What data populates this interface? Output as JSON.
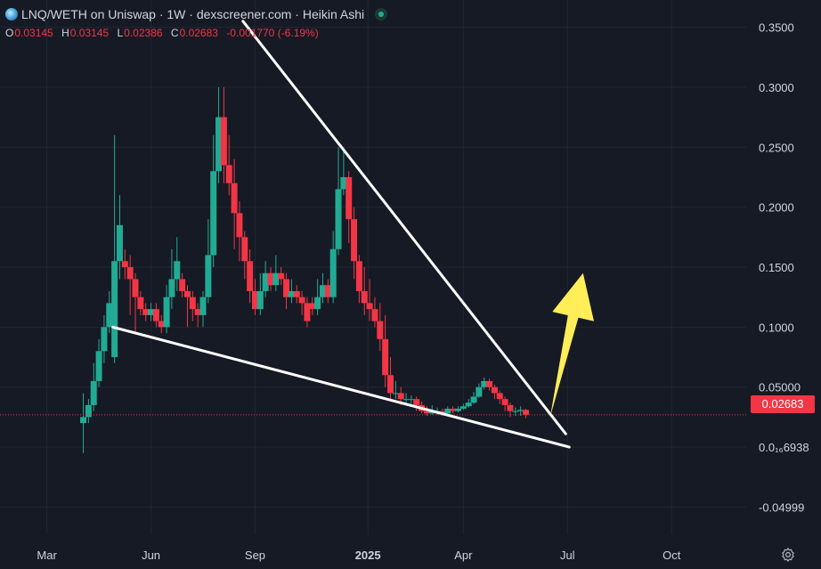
{
  "header": {
    "title": "LNQ/WETH on Uniswap · 1W · dexscreener.com · Heikin Ashi",
    "status_icon": "live-dot-icon"
  },
  "ohlc": {
    "o_label": "O",
    "o": "0.03145",
    "h_label": "H",
    "h": "0.03145",
    "l_label": "L",
    "l": "0.02386",
    "c_label": "C",
    "c": "0.02683",
    "change": "-0.001770 (-6.19%)"
  },
  "current_price_label": "0.02683",
  "colors": {
    "background": "#161a25",
    "up": "#22ab94",
    "down": "#f23645",
    "trendline": "#ffffff",
    "arrow": "#ffee58",
    "grid": "#232632"
  },
  "chart_data": {
    "type": "candlestick",
    "style": "Heikin Ashi",
    "interval": "1W",
    "y_tick_labels": [
      "0.3500",
      "0.3000",
      "0.2500",
      "0.2000",
      "0.1500",
      "0.1000",
      "0.05000",
      "0.0₁₆6938",
      "-0.04999"
    ],
    "y_tick_values": [
      0.35,
      0.3,
      0.25,
      0.2,
      0.15,
      0.1,
      0.05,
      0.0,
      -0.04999
    ],
    "x_tick_labels": [
      "Mar",
      "Jun",
      "Sep",
      "2025",
      "Apr",
      "Jul",
      "Oct"
    ],
    "x_tick_positions": [
      1.75,
      4.75,
      7.75,
      11.0,
      13.75,
      16.75,
      19.75
    ],
    "x_unit": "months since 2024-01-01",
    "ylim": [
      -0.0727,
      0.3727
    ],
    "xlim": [
      0.4,
      21.9
    ],
    "grid": true,
    "current_price": 0.02683,
    "candles": [
      [
        2.8,
        0.02,
        0.025,
        0.045,
        -0.005
      ],
      [
        2.95,
        0.025,
        0.035,
        0.04,
        0.02
      ],
      [
        3.1,
        0.035,
        0.055,
        0.07,
        0.03
      ],
      [
        3.25,
        0.055,
        0.08,
        0.09,
        0.05
      ],
      [
        3.4,
        0.08,
        0.1,
        0.11,
        0.07
      ],
      [
        3.55,
        0.1,
        0.12,
        0.13,
        0.095
      ],
      [
        3.7,
        0.075,
        0.155,
        0.26,
        0.07
      ],
      [
        3.85,
        0.155,
        0.185,
        0.21,
        0.14
      ],
      [
        4.0,
        0.155,
        0.15,
        0.165,
        0.14
      ],
      [
        4.15,
        0.15,
        0.14,
        0.16,
        0.11
      ],
      [
        4.3,
        0.14,
        0.125,
        0.145,
        0.095
      ],
      [
        4.45,
        0.125,
        0.115,
        0.13,
        0.11
      ],
      [
        4.6,
        0.115,
        0.11,
        0.12,
        0.105
      ],
      [
        4.75,
        0.11,
        0.115,
        0.12,
        0.105
      ],
      [
        4.9,
        0.115,
        0.105,
        0.12,
        0.1
      ],
      [
        5.05,
        0.105,
        0.1,
        0.11,
        0.095
      ],
      [
        5.2,
        0.1,
        0.125,
        0.135,
        0.095
      ],
      [
        5.35,
        0.125,
        0.14,
        0.165,
        0.115
      ],
      [
        5.5,
        0.14,
        0.155,
        0.175,
        0.13
      ],
      [
        5.65,
        0.14,
        0.13,
        0.145,
        0.125
      ],
      [
        5.8,
        0.13,
        0.125,
        0.135,
        0.1
      ],
      [
        5.95,
        0.125,
        0.115,
        0.13,
        0.105
      ],
      [
        6.1,
        0.115,
        0.11,
        0.12,
        0.1
      ],
      [
        6.25,
        0.11,
        0.125,
        0.13,
        0.1
      ],
      [
        6.4,
        0.125,
        0.16,
        0.19,
        0.12
      ],
      [
        6.55,
        0.16,
        0.23,
        0.26,
        0.15
      ],
      [
        6.7,
        0.23,
        0.275,
        0.3,
        0.22
      ],
      [
        6.85,
        0.275,
        0.235,
        0.3,
        0.22
      ],
      [
        7.0,
        0.235,
        0.22,
        0.26,
        0.21
      ],
      [
        7.15,
        0.22,
        0.195,
        0.24,
        0.165
      ],
      [
        7.3,
        0.195,
        0.175,
        0.205,
        0.155
      ],
      [
        7.45,
        0.175,
        0.155,
        0.18,
        0.14
      ],
      [
        7.6,
        0.155,
        0.13,
        0.165,
        0.12
      ],
      [
        7.75,
        0.13,
        0.115,
        0.14,
        0.11
      ],
      [
        7.9,
        0.115,
        0.13,
        0.145,
        0.11
      ],
      [
        8.05,
        0.13,
        0.145,
        0.155,
        0.125
      ],
      [
        8.2,
        0.145,
        0.135,
        0.15,
        0.13
      ],
      [
        8.35,
        0.135,
        0.145,
        0.16,
        0.13
      ],
      [
        8.5,
        0.145,
        0.14,
        0.15,
        0.135
      ],
      [
        8.65,
        0.14,
        0.125,
        0.145,
        0.115
      ],
      [
        8.8,
        0.125,
        0.13,
        0.14,
        0.12
      ],
      [
        8.95,
        0.13,
        0.125,
        0.135,
        0.12
      ],
      [
        9.1,
        0.125,
        0.12,
        0.13,
        0.11
      ],
      [
        9.25,
        0.12,
        0.105,
        0.125,
        0.1
      ],
      [
        9.4,
        0.12,
        0.115,
        0.125,
        0.11
      ],
      [
        9.55,
        0.115,
        0.125,
        0.14,
        0.11
      ],
      [
        9.7,
        0.125,
        0.135,
        0.145,
        0.12
      ],
      [
        9.85,
        0.135,
        0.125,
        0.14,
        0.12
      ],
      [
        10.0,
        0.125,
        0.165,
        0.18,
        0.12
      ],
      [
        10.15,
        0.165,
        0.215,
        0.25,
        0.16
      ],
      [
        10.3,
        0.215,
        0.225,
        0.25,
        0.21
      ],
      [
        10.45,
        0.225,
        0.19,
        0.23,
        0.17
      ],
      [
        10.6,
        0.19,
        0.155,
        0.2,
        0.14
      ],
      [
        10.75,
        0.155,
        0.13,
        0.16,
        0.12
      ],
      [
        10.9,
        0.13,
        0.12,
        0.15,
        0.11
      ],
      [
        11.05,
        0.12,
        0.115,
        0.14,
        0.105
      ],
      [
        11.2,
        0.115,
        0.105,
        0.125,
        0.1
      ],
      [
        11.35,
        0.105,
        0.09,
        0.12,
        0.08
      ],
      [
        11.5,
        0.09,
        0.06,
        0.11,
        0.05
      ],
      [
        11.65,
        0.06,
        0.045,
        0.075,
        0.04
      ],
      [
        11.8,
        0.045,
        0.045,
        0.055,
        0.04
      ],
      [
        11.95,
        0.045,
        0.04,
        0.05,
        0.035
      ],
      [
        12.1,
        0.04,
        0.04,
        0.045,
        0.037
      ],
      [
        12.25,
        0.04,
        0.04,
        0.043,
        0.036
      ],
      [
        12.4,
        0.04,
        0.035,
        0.042,
        0.03
      ],
      [
        12.55,
        0.035,
        0.03,
        0.038,
        0.028
      ],
      [
        12.7,
        0.03,
        0.028,
        0.034,
        0.026
      ],
      [
        12.85,
        0.028,
        0.03,
        0.035,
        0.027
      ],
      [
        13.0,
        0.03,
        0.03,
        0.033,
        0.027
      ],
      [
        13.15,
        0.03,
        0.028,
        0.032,
        0.026
      ],
      [
        13.3,
        0.028,
        0.032,
        0.034,
        0.027
      ],
      [
        13.45,
        0.032,
        0.03,
        0.034,
        0.028
      ],
      [
        13.6,
        0.03,
        0.032,
        0.034,
        0.029
      ],
      [
        13.75,
        0.032,
        0.034,
        0.036,
        0.031
      ],
      [
        13.9,
        0.034,
        0.037,
        0.04,
        0.033
      ],
      [
        14.05,
        0.037,
        0.042,
        0.046,
        0.036
      ],
      [
        14.2,
        0.042,
        0.05,
        0.053,
        0.041
      ],
      [
        14.35,
        0.05,
        0.055,
        0.058,
        0.048
      ],
      [
        14.5,
        0.055,
        0.05,
        0.057,
        0.047
      ],
      [
        14.65,
        0.05,
        0.045,
        0.052,
        0.04
      ],
      [
        14.8,
        0.045,
        0.04,
        0.047,
        0.036
      ],
      [
        14.95,
        0.04,
        0.035,
        0.042,
        0.03
      ],
      [
        15.1,
        0.035,
        0.03,
        0.037,
        0.025
      ],
      [
        15.25,
        0.03,
        0.03,
        0.033,
        0.026
      ],
      [
        15.4,
        0.03,
        0.031,
        0.034,
        0.026
      ],
      [
        15.55,
        0.031,
        0.027,
        0.032,
        0.024
      ]
    ],
    "annotations": [
      {
        "type": "trendline",
        "from": [
          3.65,
          0.1
        ],
        "to": [
          16.8,
          0.0
        ]
      },
      {
        "type": "trendline",
        "from": [
          7.4,
          0.355
        ],
        "to": [
          16.7,
          0.011
        ]
      },
      {
        "type": "arrow",
        "from": [
          16.25,
          0.025
        ],
        "to": [
          17.2,
          0.145
        ],
        "color": "#ffee58"
      }
    ]
  }
}
